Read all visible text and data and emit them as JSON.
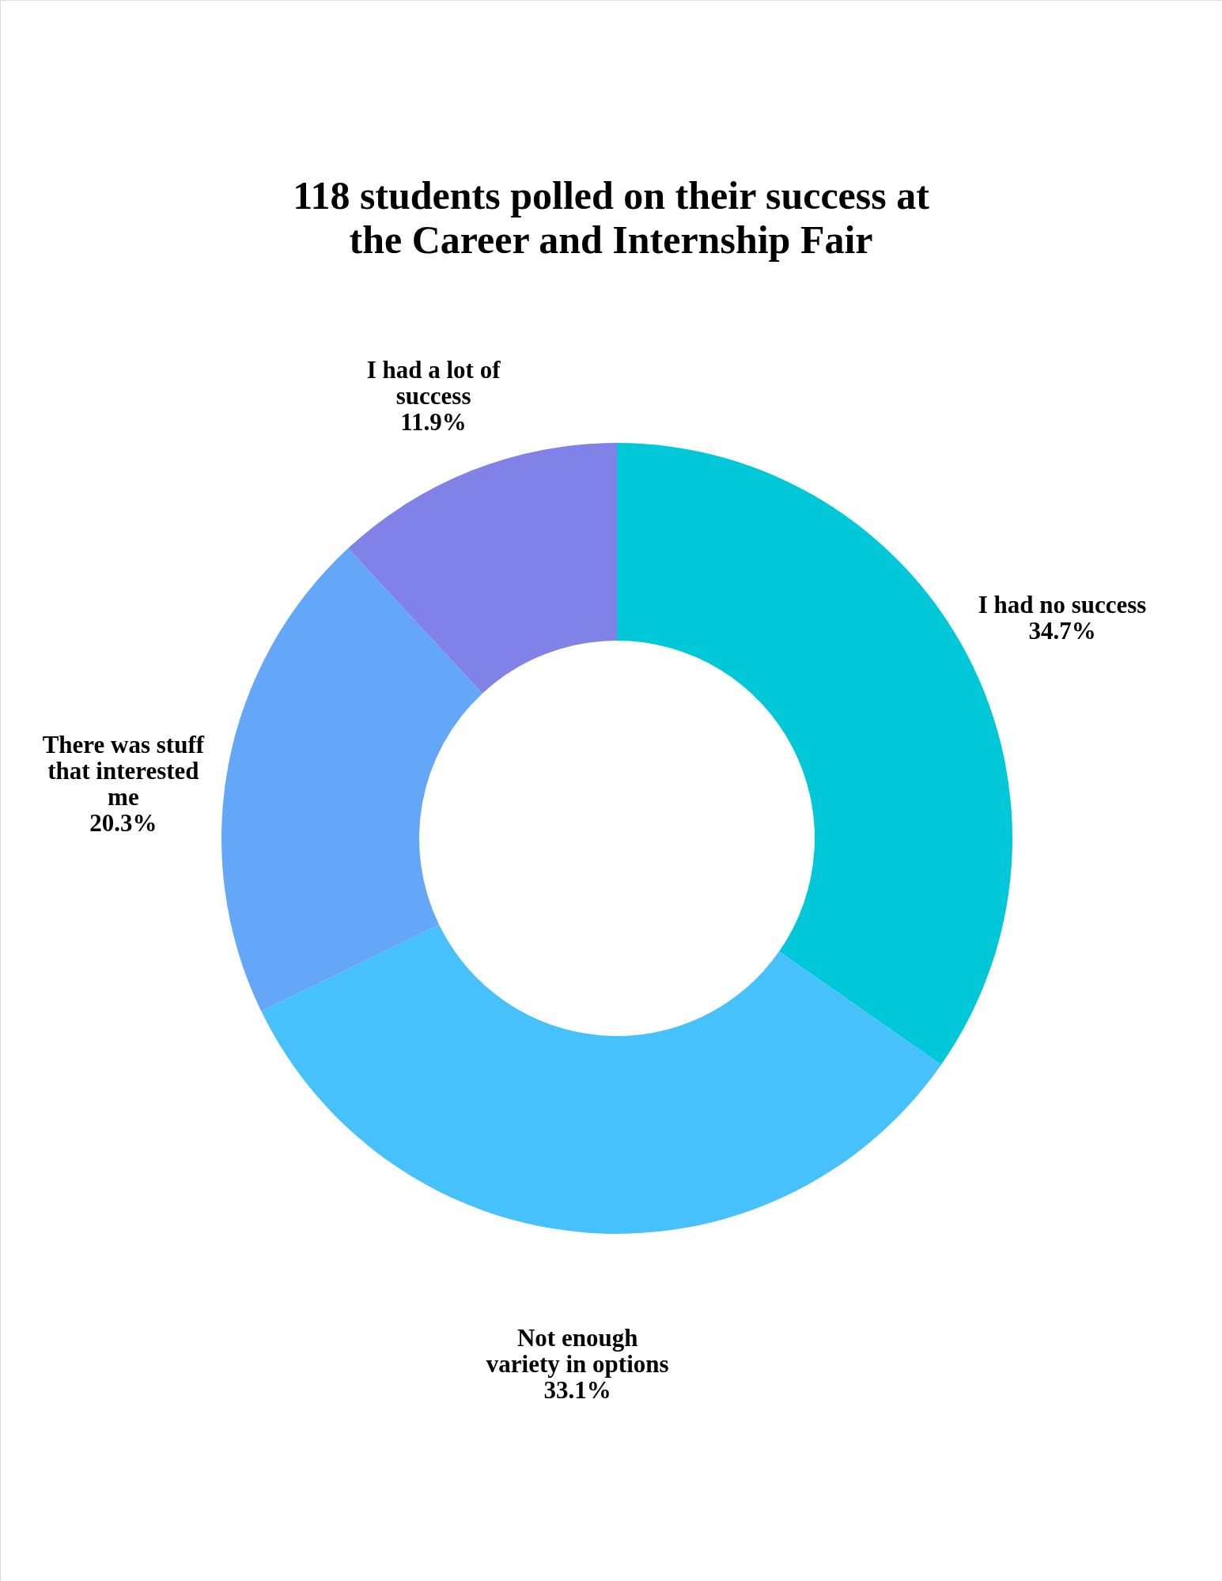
{
  "chart_data": {
    "type": "donut",
    "title": "118 students polled on their success at\nthe Career and Internship Fair",
    "categories": [
      "I had no success",
      "Not enough\nvariety in options",
      "There was stuff\nthat interested\nme",
      "I had a lot of\nsuccess"
    ],
    "values": [
      34.7,
      33.1,
      20.3,
      11.9
    ],
    "value_labels": [
      "34.7%",
      "33.1%",
      "20.3%",
      "11.9%"
    ],
    "colors": [
      "#00c8d9",
      "#47c1fc",
      "#64a6f8",
      "#8082e8"
    ],
    "legend": false
  }
}
